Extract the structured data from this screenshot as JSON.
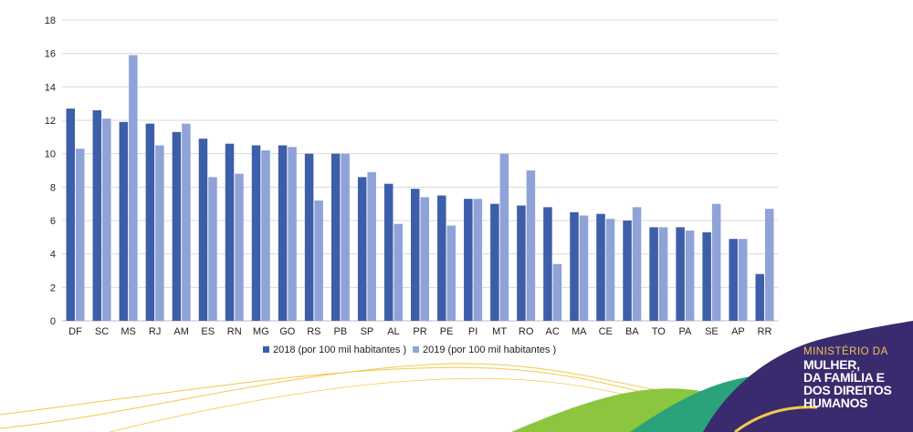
{
  "chart_data": {
    "type": "bar",
    "categories": [
      "DF",
      "SC",
      "MS",
      "RJ",
      "AM",
      "ES",
      "RN",
      "MG",
      "GO",
      "RS",
      "PB",
      "SP",
      "AL",
      "PR",
      "PE",
      "PI",
      "MT",
      "RO",
      "AC",
      "MA",
      "CE",
      "BA",
      "TO",
      "PA",
      "SE",
      "AP",
      "RR"
    ],
    "series": [
      {
        "name": "2018 (por 100 mil habitantes )",
        "color": "#3d5ea8",
        "values": [
          12.7,
          12.6,
          11.9,
          11.8,
          11.3,
          10.9,
          10.6,
          10.5,
          10.5,
          10.0,
          10.0,
          8.6,
          8.2,
          7.9,
          7.5,
          7.3,
          7.0,
          6.9,
          6.8,
          6.5,
          6.4,
          6.0,
          5.6,
          5.6,
          5.3,
          4.9,
          2.8
        ]
      },
      {
        "name": "2019 (por 100 mil habitantes )",
        "color": "#8fa3d9",
        "values": [
          10.3,
          12.1,
          15.9,
          10.5,
          11.8,
          8.6,
          8.8,
          10.2,
          10.4,
          7.2,
          10.0,
          8.9,
          5.8,
          7.4,
          5.7,
          7.3,
          10.0,
          9.0,
          3.4,
          6.3,
          6.1,
          6.8,
          5.6,
          5.4,
          7.0,
          4.9,
          6.7
        ]
      }
    ],
    "ylim": [
      0,
      18
    ],
    "yticks": [
      "0",
      "2",
      "4",
      "6",
      "8",
      "10",
      "12",
      "14",
      "16",
      "18"
    ],
    "grid": true,
    "legend_position": "bottom"
  },
  "brand": {
    "line1": "MINISTÉRIO DA",
    "line2": "MULHER,",
    "line3": "DA FAMÍLIA E",
    "line4": "DOS DIREITOS",
    "line5": "HUMANOS",
    "colors": {
      "purple": "#3a2b6e",
      "teal": "#2aa37b",
      "green": "#8cc63f",
      "yellow": "#f2c94c",
      "gold": "#f2c15a"
    }
  }
}
